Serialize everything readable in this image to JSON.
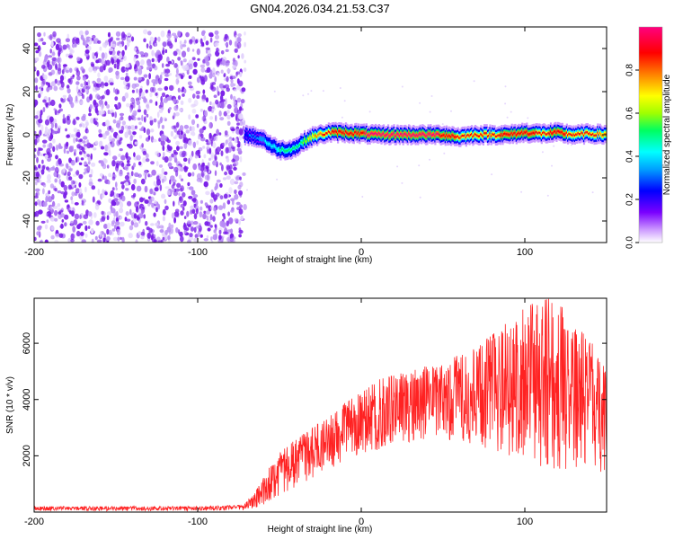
{
  "figure_title": "GN04.2026.034.21.53.C37",
  "chart_data": [
    {
      "type": "heatmap",
      "panel": "spectrogram",
      "title": "GN04.2026.034.21.53.C37",
      "xlabel": "Height of straight line (km)",
      "ylabel": "Frequency (Hz)",
      "xlim": [
        -200,
        150
      ],
      "ylim": [
        -50,
        50
      ],
      "x_ticks": [
        -200,
        -100,
        0,
        100
      ],
      "y_ticks": [
        -40,
        -20,
        0,
        20,
        40
      ],
      "colorbar": {
        "label": "Normalized spectral amplitude",
        "range": [
          0,
          1
        ],
        "ticks": [
          "0.0",
          "0.2",
          "0.4",
          "0.6",
          "0.8"
        ],
        "colors": [
          "#ffffff",
          "#cc99ff",
          "#7a00ff",
          "#0000ff",
          "#00a0ff",
          "#00ffff",
          "#00ff60",
          "#a0ff00",
          "#ffff00",
          "#ff8000",
          "#ff0000",
          "#ff0080"
        ]
      },
      "noise_region": {
        "x_range": [
          -200,
          -71
        ],
        "freq_range": [
          -50,
          48
        ],
        "level": "low (0.05–0.25)"
      },
      "doppler_trace": {
        "x": [
          -71,
          -65,
          -60,
          -55,
          -50,
          -45,
          -40,
          -35,
          -30,
          -25,
          -20,
          -10,
          0,
          10,
          20,
          30,
          40,
          50,
          60,
          70,
          80,
          90,
          100,
          110,
          120,
          130,
          140,
          150
        ],
        "freq": [
          0,
          -1,
          -2,
          -5,
          -7,
          -7,
          -6,
          -3,
          -1,
          0,
          1,
          1,
          0.5,
          0,
          0,
          0,
          0,
          0,
          -1,
          0,
          0,
          0,
          1,
          0.5,
          1,
          0,
          0.5,
          0
        ],
        "peak_amplitude": [
          0.3,
          0.35,
          0.4,
          0.45,
          0.5,
          0.5,
          0.5,
          0.6,
          0.75,
          0.85,
          0.9,
          0.95,
          0.95,
          0.97,
          0.98,
          0.98,
          0.97,
          0.95,
          0.9,
          0.9,
          0.9,
          0.92,
          0.93,
          0.9,
          0.92,
          0.9,
          0.88,
          0.85
        ]
      }
    },
    {
      "type": "line",
      "panel": "snr",
      "xlabel": "Height of straight line (km)",
      "ylabel": "SNR (10 * v/v)",
      "xlim": [
        -200,
        150
      ],
      "ylim": [
        0,
        7600
      ],
      "x_ticks": [
        -200,
        -100,
        0,
        100
      ],
      "y_ticks": [
        2000,
        4000,
        6000
      ],
      "series": [
        {
          "name": "SNR",
          "color": "#ff2222",
          "envelope": {
            "x": [
              -200,
              -150,
              -100,
              -72,
              -65,
              -60,
              -55,
              -50,
              -40,
              -30,
              -20,
              -10,
              0,
              10,
              20,
              30,
              40,
              50,
              60,
              70,
              80,
              90,
              100,
              110,
              120,
              130,
              140,
              150
            ],
            "low": [
              50,
              50,
              50,
              60,
              150,
              250,
              400,
              600,
              900,
              1200,
              1500,
              1800,
              2000,
              2200,
              2400,
              2500,
              2600,
              2600,
              2500,
              2400,
              2200,
              2000,
              1800,
              1600,
              1500,
              1400,
              1300,
              1300
            ],
            "high": [
              200,
              200,
              200,
              250,
              700,
              1200,
              1700,
              2100,
              2600,
              3000,
              3400,
              3900,
              4300,
              4700,
              4900,
              5000,
              5200,
              5300,
              5600,
              5900,
              6300,
              6800,
              7300,
              7600,
              7600,
              6600,
              6200,
              5000
            ]
          }
        }
      ]
    }
  ]
}
